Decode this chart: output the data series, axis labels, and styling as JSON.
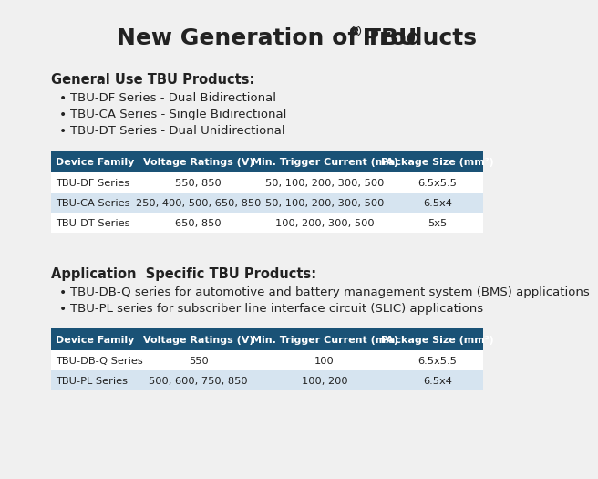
{
  "title": "New Generation of TBU® Products",
  "title_fontsize": 18,
  "background_color": "#f0f0f0",
  "header_color": "#1a5276",
  "header_text_color": "#ffffff",
  "row_alt_color": "#d6e4f0",
  "row_white_color": "#ffffff",
  "text_color": "#222222",
  "section1_bold": "General Use TBU Products:",
  "section1_bullets": [
    "TBU-DF Series - Dual Bidirectional",
    "TBU-CA Series - Single Bidirectional",
    "TBU-DT Series - Dual Unidirectional"
  ],
  "table1_headers": [
    "Device Family",
    "Voltage Ratings (V)",
    "Min. Trigger Current (mA)",
    "Package Size (mm²)"
  ],
  "table1_rows": [
    [
      "TBU-DF Series",
      "550, 850",
      "50, 100, 200, 300, 500",
      "6.5x5.5"
    ],
    [
      "TBU-CA Series",
      "250, 400, 500, 650, 850",
      "50, 100, 200, 300, 500",
      "6.5x4"
    ],
    [
      "TBU-DT Series",
      "650, 850",
      "100, 200, 300, 500",
      "5x5"
    ]
  ],
  "section2_bold": "Application  Specific TBU Products:",
  "section2_bullets": [
    "TBU-DB-Q series for automotive and battery management system (BMS) applications",
    "TBU-PL series for subscriber line interface circuit (SLIC) applications"
  ],
  "table2_headers": [
    "Device Family",
    "Voltage Ratings (V)",
    "Min. Trigger Current (mA)",
    "Package Size (mm²)"
  ],
  "table2_rows": [
    [
      "TBU-DB-Q Series",
      "550",
      "100",
      "6.5x5.5"
    ],
    [
      "TBU-PL Series",
      "500, 600, 750, 850",
      "100, 200",
      "6.5x4"
    ]
  ]
}
